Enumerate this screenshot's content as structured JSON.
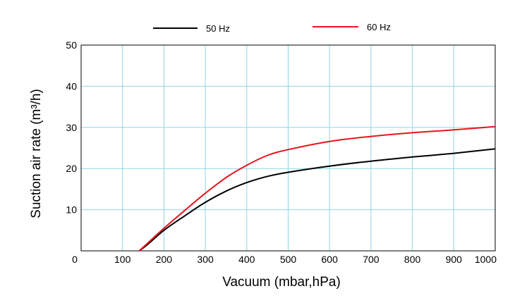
{
  "chart_data": {
    "type": "line",
    "title": "",
    "xlabel": "Vacuum (mbar,hPa)",
    "ylabel": "Suction air rate (m³/h)",
    "xlim": [
      0,
      1000
    ],
    "ylim": [
      0,
      50
    ],
    "x_ticks": [
      "0",
      "100",
      "200",
      "300",
      "400",
      "500",
      "600",
      "700",
      "800",
      "900",
      "1000"
    ],
    "y_ticks": [
      "10",
      "20",
      "30",
      "40",
      "50"
    ],
    "grid": true,
    "legend_position": "top",
    "series": [
      {
        "name": "50 Hz",
        "color": "#000000",
        "x": [
          140,
          160,
          200,
          250,
          300,
          350,
          400,
          450,
          500,
          600,
          700,
          800,
          900,
          1000
        ],
        "y": [
          0,
          1.5,
          5,
          8.5,
          11.8,
          14.5,
          16.6,
          18.1,
          19.1,
          20.6,
          21.8,
          22.8,
          23.7,
          24.8
        ]
      },
      {
        "name": "60 Hz",
        "color": "#e8141c",
        "x": [
          140,
          160,
          200,
          250,
          300,
          350,
          400,
          450,
          500,
          600,
          700,
          800,
          900,
          1000
        ],
        "y": [
          0,
          1.8,
          5.5,
          9.8,
          14,
          17.8,
          20.8,
          23.2,
          24.6,
          26.6,
          27.8,
          28.7,
          29.4,
          30.2
        ]
      }
    ]
  }
}
